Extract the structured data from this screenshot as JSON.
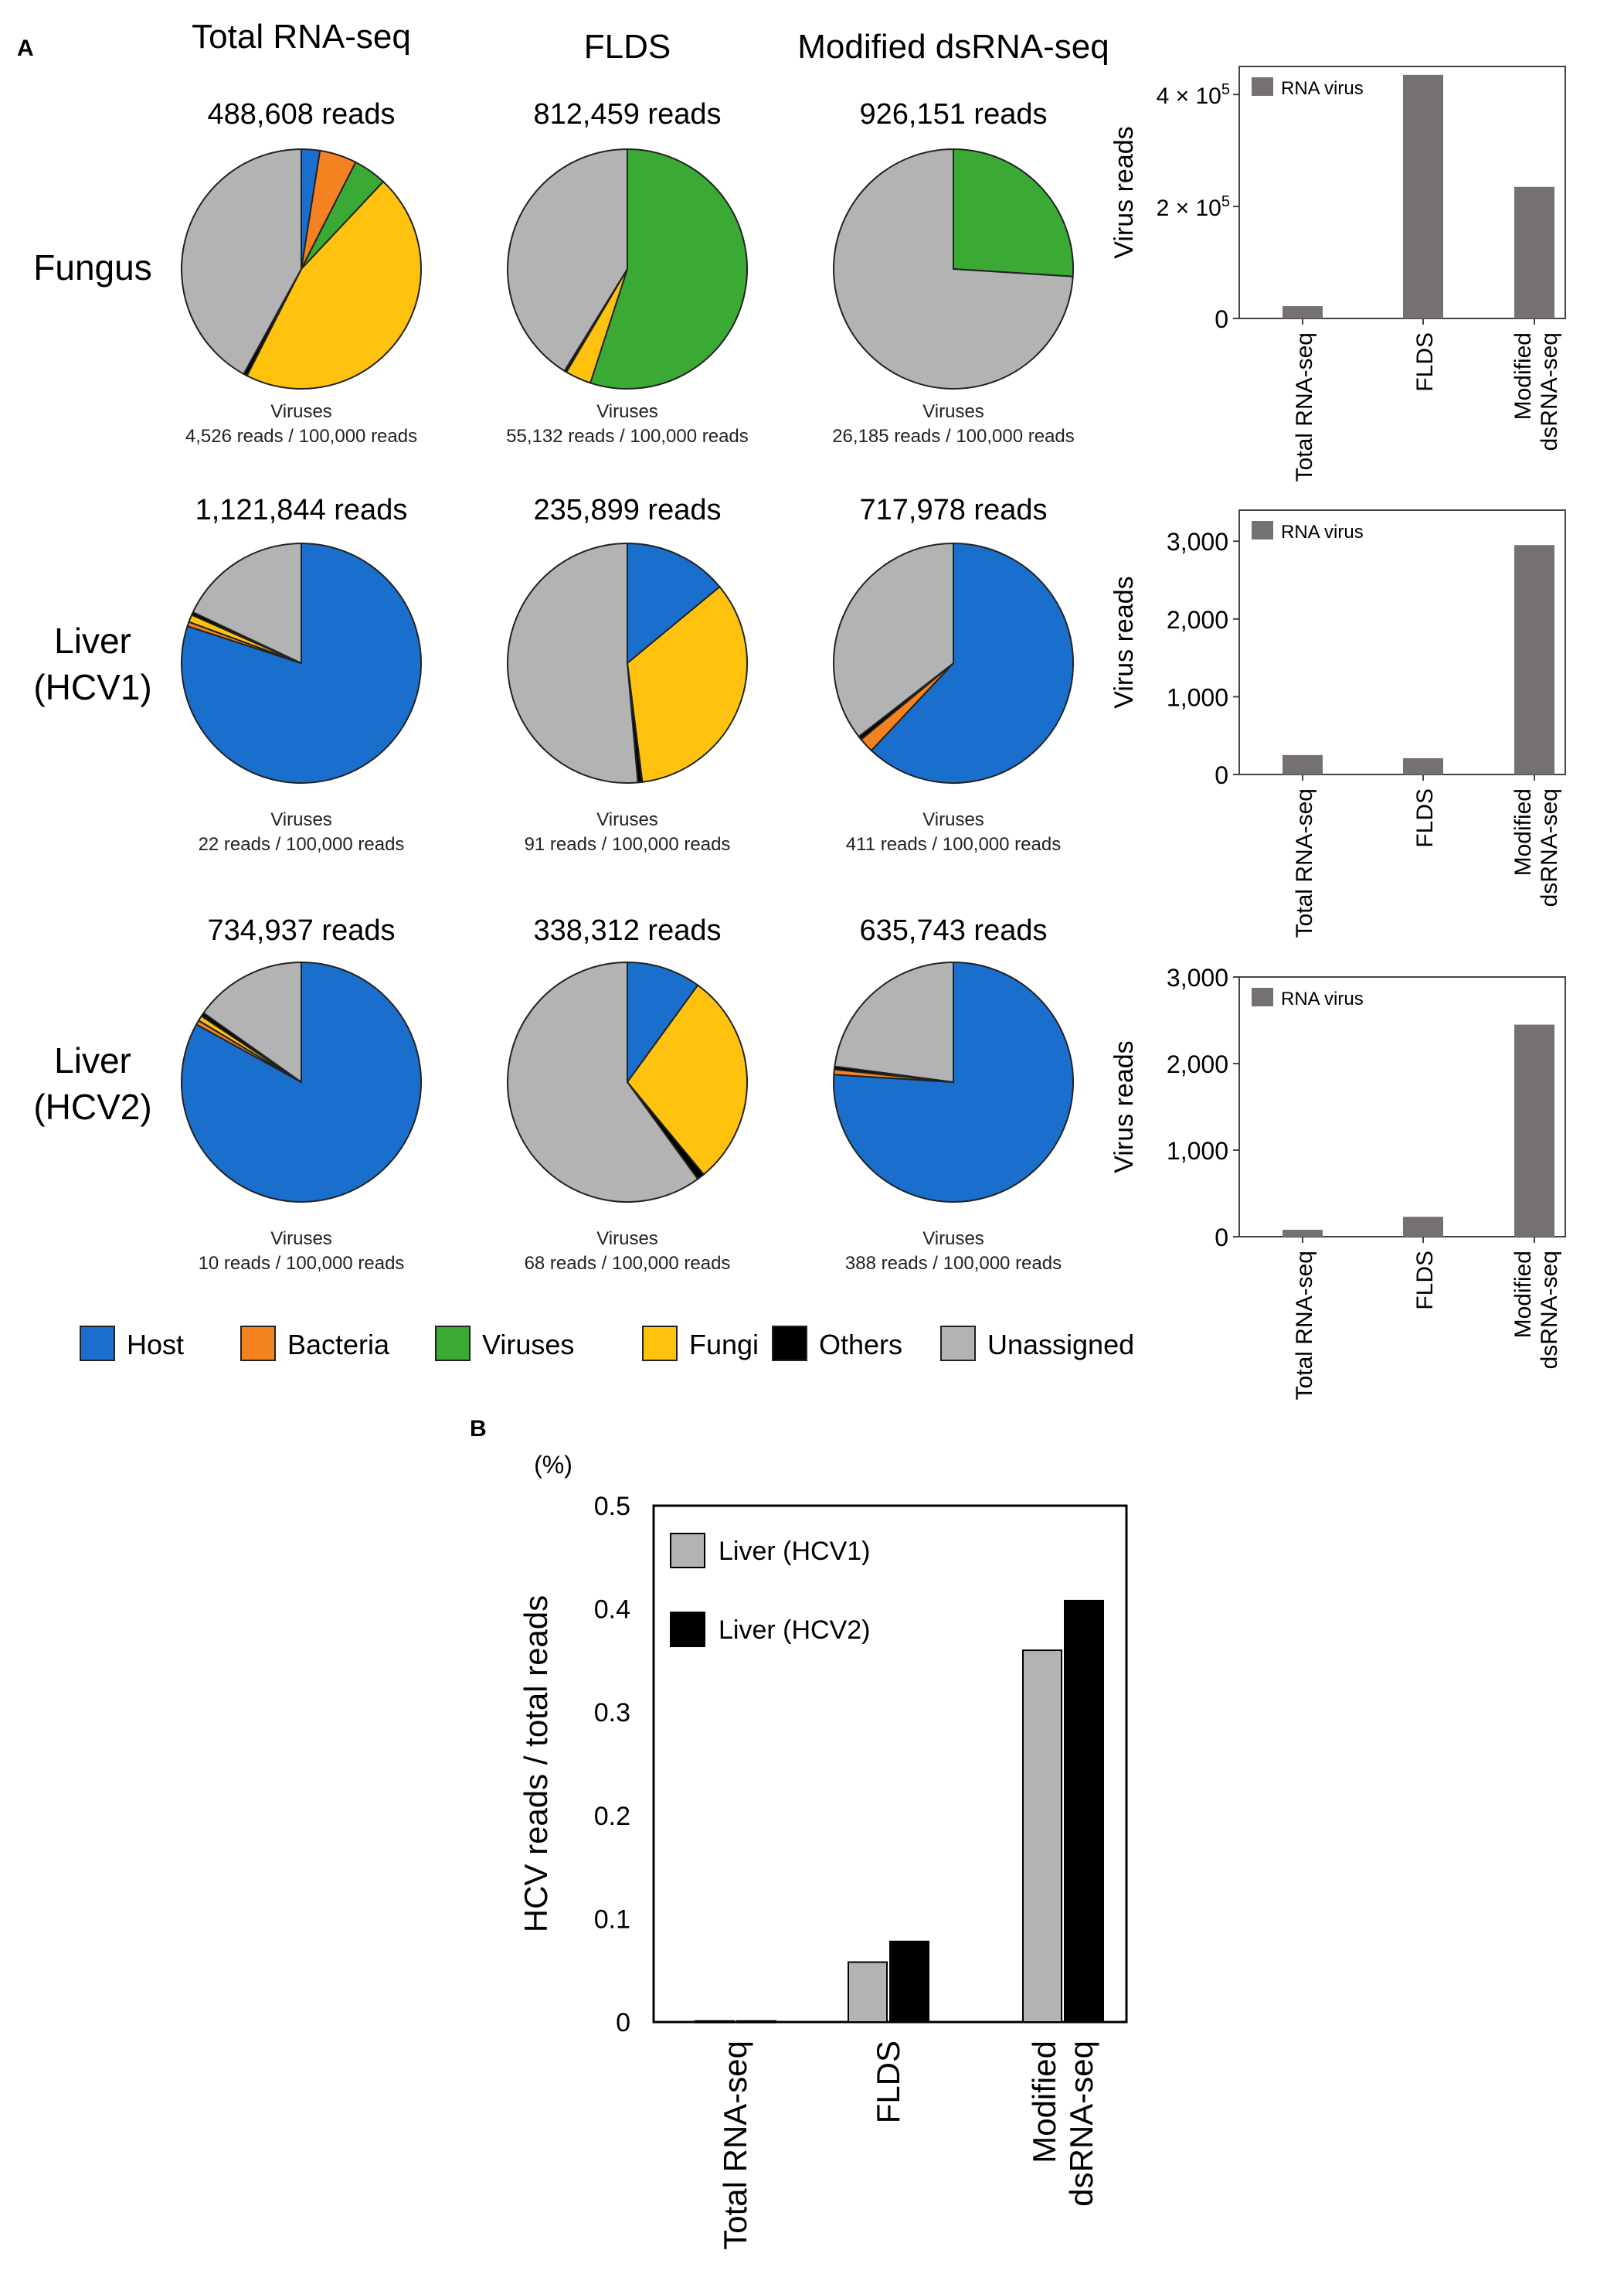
{
  "panel_a_label": "A",
  "panel_b_label": "B",
  "method_headers": [
    "Total RNA-seq",
    "FLDS",
    "Modified dsRNA-seq"
  ],
  "category_names": [
    "Host",
    "Bacteria",
    "Viruses",
    "Fungi",
    "Others",
    "Unassigned"
  ],
  "colors": {
    "Host": "#1a6fcc",
    "Bacteria": "#f58220",
    "Viruses": "#3aaa35",
    "Fungi": "#ffc20e",
    "Others": "#000000",
    "Unassigned": "#b3b3b3",
    "virus_bar": "#767171",
    "hcv1": "#b3b3b3",
    "hcv2": "#000000"
  },
  "viruses_caption": "Viruses",
  "chart_data": [
    {
      "type": "pie",
      "id": "pies",
      "rows": [
        {
          "label_lines": [
            "Fungus"
          ],
          "pies": [
            {
              "method": "Total RNA-seq",
              "reads": "488,608 reads",
              "virus_text": "4,526 reads / 100,000 reads",
              "slices": [
                {
                  "name": "Host",
                  "value": 2.5
                },
                {
                  "name": "Bacteria",
                  "value": 5
                },
                {
                  "name": "Viruses",
                  "value": 4.5
                },
                {
                  "name": "Fungi",
                  "value": 45.5
                },
                {
                  "name": "Others",
                  "value": 0.5
                },
                {
                  "name": "Unassigned",
                  "value": 42
                }
              ]
            },
            {
              "method": "FLDS",
              "reads": "812,459 reads",
              "virus_text": "55,132 reads / 100,000 reads",
              "slices": [
                {
                  "name": "Viruses",
                  "value": 55
                },
                {
                  "name": "Fungi",
                  "value": 3.5
                },
                {
                  "name": "Others",
                  "value": 0.3
                },
                {
                  "name": "Unassigned",
                  "value": 41.2
                }
              ]
            },
            {
              "method": "Modified dsRNA-seq",
              "reads": "926,151 reads",
              "virus_text": "26,185 reads / 100,000 reads",
              "slices": [
                {
                  "name": "Viruses",
                  "value": 26
                },
                {
                  "name": "Unassigned",
                  "value": 74
                }
              ]
            }
          ]
        },
        {
          "label_lines": [
            "Liver",
            "(HCV1)"
          ],
          "pies": [
            {
              "method": "Total RNA-seq",
              "reads": "1,121,844 reads",
              "virus_text": "22 reads / 100,000 reads",
              "slices": [
                {
                  "name": "Host",
                  "value": 80
                },
                {
                  "name": "Bacteria",
                  "value": 0.6
                },
                {
                  "name": "Fungi",
                  "value": 1
                },
                {
                  "name": "Others",
                  "value": 0.4
                },
                {
                  "name": "Unassigned",
                  "value": 18
                }
              ]
            },
            {
              "method": "FLDS",
              "reads": "235,899 reads",
              "virus_text": "91 reads / 100,000 reads",
              "slices": [
                {
                  "name": "Host",
                  "value": 14
                },
                {
                  "name": "Fungi",
                  "value": 34
                },
                {
                  "name": "Others",
                  "value": 0.6
                },
                {
                  "name": "Unassigned",
                  "value": 51.4
                }
              ]
            },
            {
              "method": "Modified dsRNA-seq",
              "reads": "717,978 reads",
              "virus_text": "411 reads / 100,000 reads",
              "slices": [
                {
                  "name": "Host",
                  "value": 62
                },
                {
                  "name": "Bacteria",
                  "value": 2
                },
                {
                  "name": "Others",
                  "value": 0.5
                },
                {
                  "name": "Unassigned",
                  "value": 35.5
                }
              ]
            }
          ]
        },
        {
          "label_lines": [
            "Liver",
            "(HCV2)"
          ],
          "pies": [
            {
              "method": "Total RNA-seq",
              "reads": "734,937 reads",
              "virus_text": "10 reads / 100,000 reads",
              "slices": [
                {
                  "name": "Host",
                  "value": 83
                },
                {
                  "name": "Bacteria",
                  "value": 0.6
                },
                {
                  "name": "Fungi",
                  "value": 0.7
                },
                {
                  "name": "Others",
                  "value": 0.5
                },
                {
                  "name": "Unassigned",
                  "value": 15.2
                }
              ]
            },
            {
              "method": "FLDS",
              "reads": "338,312 reads",
              "virus_text": "68 reads / 100,000 reads",
              "slices": [
                {
                  "name": "Host",
                  "value": 10
                },
                {
                  "name": "Fungi",
                  "value": 29
                },
                {
                  "name": "Others",
                  "value": 1
                },
                {
                  "name": "Unassigned",
                  "value": 60
                }
              ]
            },
            {
              "method": "Modified dsRNA-seq",
              "reads": "635,743 reads",
              "virus_text": "388 reads / 100,000 reads",
              "slices": [
                {
                  "name": "Host",
                  "value": 76
                },
                {
                  "name": "Bacteria",
                  "value": 0.7
                },
                {
                  "name": "Others",
                  "value": 0.4
                },
                {
                  "name": "Unassigned",
                  "value": 22.9
                }
              ]
            }
          ]
        }
      ]
    },
    {
      "type": "bar",
      "id": "virus-bar-fungus",
      "ylabel": "Virus reads",
      "legend": "RNA virus",
      "categories": [
        "Total RNA-seq",
        "FLDS",
        "Modified dsRNA-seq"
      ],
      "category_lines": [
        [
          "Total RNA-seq"
        ],
        [
          "FLDS"
        ],
        [
          "Modified",
          "dsRNA-seq"
        ]
      ],
      "values": [
        22000,
        435000,
        235000
      ],
      "ylim": [
        0,
        450000
      ],
      "ticks": [
        {
          "value": 0,
          "label": "0"
        },
        {
          "value": 200000,
          "base": "2 × 10",
          "exp": "5"
        },
        {
          "value": 400000,
          "base": "4 × 10",
          "exp": "5"
        }
      ]
    },
    {
      "type": "bar",
      "id": "virus-bar-hcv1",
      "ylabel": "Virus reads",
      "legend": "RNA virus",
      "categories": [
        "Total RNA-seq",
        "FLDS",
        "Modified dsRNA-seq"
      ],
      "category_lines": [
        [
          "Total RNA-seq"
        ],
        [
          "FLDS"
        ],
        [
          "Modified",
          "dsRNA-seq"
        ]
      ],
      "values": [
        250,
        210,
        2950
      ],
      "ylim": [
        0,
        3400
      ],
      "ticks": [
        {
          "value": 0,
          "label": "0"
        },
        {
          "value": 1000,
          "label": "1,000"
        },
        {
          "value": 2000,
          "label": "2,000"
        },
        {
          "value": 3000,
          "label": "3,000"
        }
      ]
    },
    {
      "type": "bar",
      "id": "virus-bar-hcv2",
      "ylabel": "Virus reads",
      "legend": "RNA virus",
      "categories": [
        "Total RNA-seq",
        "FLDS",
        "Modified dsRNA-seq"
      ],
      "category_lines": [
        [
          "Total RNA-seq"
        ],
        [
          "FLDS"
        ],
        [
          "Modified",
          "dsRNA-seq"
        ]
      ],
      "values": [
        80,
        230,
        2450
      ],
      "ylim": [
        0,
        3000
      ],
      "ticks": [
        {
          "value": 0,
          "label": "0"
        },
        {
          "value": 1000,
          "label": "1,000"
        },
        {
          "value": 2000,
          "label": "2,000"
        },
        {
          "value": 3000,
          "label": "3,000"
        }
      ]
    },
    {
      "type": "bar",
      "id": "hcv-ratio",
      "ylabel": "HCV reads / total reads",
      "yunit": "(%)",
      "categories": [
        "Total RNA-seq",
        "FLDS",
        "Modified dsRNA-seq"
      ],
      "category_lines": [
        [
          "Total RNA-seq"
        ],
        [
          "FLDS"
        ],
        [
          "Modified",
          "dsRNA-seq"
        ]
      ],
      "series": [
        {
          "name": "Liver (HCV1)",
          "values": [
            0.001,
            0.058,
            0.36
          ]
        },
        {
          "name": "Liver (HCV2)",
          "values": [
            0.001,
            0.078,
            0.408
          ]
        }
      ],
      "ylim": [
        0,
        0.5
      ],
      "ticks": [
        {
          "value": 0,
          "label": "0"
        },
        {
          "value": 0.1,
          "label": "0.1"
        },
        {
          "value": 0.2,
          "label": "0.2"
        },
        {
          "value": 0.3,
          "label": "0.3"
        },
        {
          "value": 0.4,
          "label": "0.4"
        },
        {
          "value": 0.5,
          "label": "0.5"
        }
      ]
    }
  ]
}
